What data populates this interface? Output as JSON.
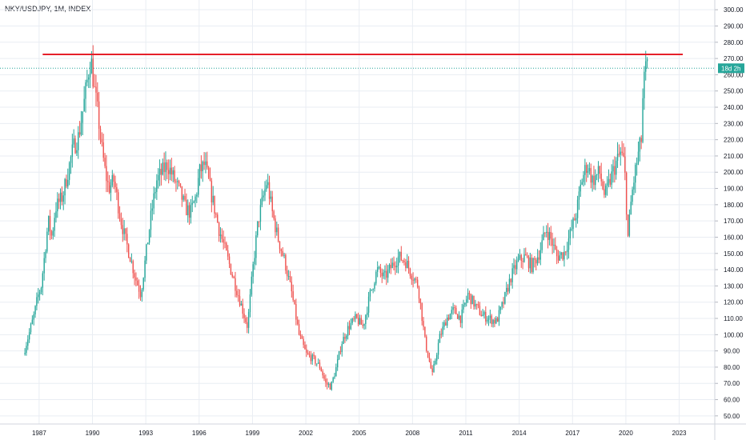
{
  "legend": {
    "symbol": "NKY/USDJPY, 1M, INDEX"
  },
  "price_tag": {
    "label": "18d 2h",
    "value": 264,
    "color": "#26a69a"
  },
  "colors": {
    "up": "#26a69a",
    "down": "#ef5350",
    "grid": "#e9edf3",
    "resistance": "#e5202a",
    "axis_text": "#131722"
  },
  "chart_data": {
    "type": "candlestick",
    "title": "NKY/USDJPY, 1M, INDEX",
    "x_ticks": [
      "1987",
      "1990",
      "1993",
      "1996",
      "1999",
      "2002",
      "2005",
      "2008",
      "2011",
      "2014",
      "2017",
      "2020",
      "2023"
    ],
    "y_ticks": [
      "50.00",
      "60.00",
      "70.00",
      "80.00",
      "90.00",
      "100.00",
      "110.00",
      "120.00",
      "130.00",
      "140.00",
      "150.00",
      "160.00",
      "170.00",
      "180.00",
      "190.00",
      "200.00",
      "210.00",
      "220.00",
      "230.00",
      "240.00",
      "250.00",
      "260.00",
      "270.00",
      "280.00",
      "290.00",
      "300.00"
    ],
    "ylim": [
      45,
      306
    ],
    "xlim": [
      1984.8,
      2025.0
    ],
    "grid": true,
    "resistance_line": {
      "value": 272.5,
      "x_start": 1987.2,
      "x_end": 2023.2
    },
    "last_price_line": 264,
    "price_path": [
      [
        1986.2,
        88
      ],
      [
        1986.5,
        100
      ],
      [
        1986.8,
        112
      ],
      [
        1987.0,
        123
      ],
      [
        1987.2,
        130
      ],
      [
        1987.4,
        150
      ],
      [
        1987.6,
        170
      ],
      [
        1987.8,
        160
      ],
      [
        1988.0,
        178
      ],
      [
        1988.4,
        185
      ],
      [
        1988.8,
        205
      ],
      [
        1989.0,
        215
      ],
      [
        1989.3,
        222
      ],
      [
        1989.6,
        242
      ],
      [
        1989.9,
        265
      ],
      [
        1990.0,
        270
      ],
      [
        1990.2,
        250
      ],
      [
        1990.4,
        235
      ],
      [
        1990.6,
        215
      ],
      [
        1990.8,
        200
      ],
      [
        1991.0,
        190
      ],
      [
        1991.3,
        195
      ],
      [
        1991.6,
        175
      ],
      [
        1991.9,
        160
      ],
      [
        1992.2,
        148
      ],
      [
        1992.5,
        135
      ],
      [
        1992.8,
        125
      ],
      [
        1993.1,
        150
      ],
      [
        1993.4,
        175
      ],
      [
        1993.7,
        195
      ],
      [
        1994.0,
        200
      ],
      [
        1994.3,
        205
      ],
      [
        1994.7,
        195
      ],
      [
        1995.0,
        188
      ],
      [
        1995.3,
        178
      ],
      [
        1995.6,
        175
      ],
      [
        1995.9,
        185
      ],
      [
        1996.1,
        200
      ],
      [
        1996.4,
        205
      ],
      [
        1996.8,
        185
      ],
      [
        1997.2,
        165
      ],
      [
        1997.6,
        150
      ],
      [
        1998.0,
        135
      ],
      [
        1998.4,
        120
      ],
      [
        1998.8,
        105
      ],
      [
        1999.1,
        140
      ],
      [
        1999.4,
        170
      ],
      [
        1999.7,
        185
      ],
      [
        1999.9,
        195
      ],
      [
        2000.2,
        175
      ],
      [
        2000.5,
        160
      ],
      [
        2000.9,
        145
      ],
      [
        2001.3,
        125
      ],
      [
        2001.7,
        100
      ],
      [
        2002.1,
        88
      ],
      [
        2002.5,
        85
      ],
      [
        2002.9,
        80
      ],
      [
        2003.2,
        70
      ],
      [
        2003.5,
        68
      ],
      [
        2003.8,
        80
      ],
      [
        2004.1,
        95
      ],
      [
        2004.5,
        105
      ],
      [
        2004.9,
        110
      ],
      [
        2005.3,
        105
      ],
      [
        2005.7,
        125
      ],
      [
        2006.1,
        140
      ],
      [
        2006.5,
        135
      ],
      [
        2006.9,
        142
      ],
      [
        2007.3,
        148
      ],
      [
        2007.7,
        145
      ],
      [
        2008.0,
        138
      ],
      [
        2008.4,
        130
      ],
      [
        2008.8,
        95
      ],
      [
        2009.2,
        75
      ],
      [
        2009.6,
        98
      ],
      [
        2010.0,
        110
      ],
      [
        2010.4,
        115
      ],
      [
        2010.8,
        110
      ],
      [
        2011.2,
        125
      ],
      [
        2011.6,
        118
      ],
      [
        2012.0,
        112
      ],
      [
        2012.4,
        110
      ],
      [
        2012.8,
        108
      ],
      [
        2013.2,
        120
      ],
      [
        2013.6,
        135
      ],
      [
        2014.0,
        145
      ],
      [
        2014.4,
        148
      ],
      [
        2014.8,
        142
      ],
      [
        2015.2,
        150
      ],
      [
        2015.6,
        165
      ],
      [
        2015.9,
        158
      ],
      [
        2016.2,
        148
      ],
      [
        2016.6,
        150
      ],
      [
        2016.9,
        160
      ],
      [
        2017.3,
        175
      ],
      [
        2017.6,
        195
      ],
      [
        2017.9,
        205
      ],
      [
        2018.2,
        195
      ],
      [
        2018.6,
        200
      ],
      [
        2018.9,
        185
      ],
      [
        2019.2,
        195
      ],
      [
        2019.5,
        205
      ],
      [
        2019.8,
        212
      ],
      [
        2020.0,
        205
      ],
      [
        2020.2,
        160
      ],
      [
        2020.4,
        185
      ],
      [
        2020.6,
        200
      ],
      [
        2020.8,
        212
      ],
      [
        2020.95,
        220
      ],
      [
        2021.05,
        250
      ],
      [
        2021.2,
        264
      ]
    ]
  }
}
